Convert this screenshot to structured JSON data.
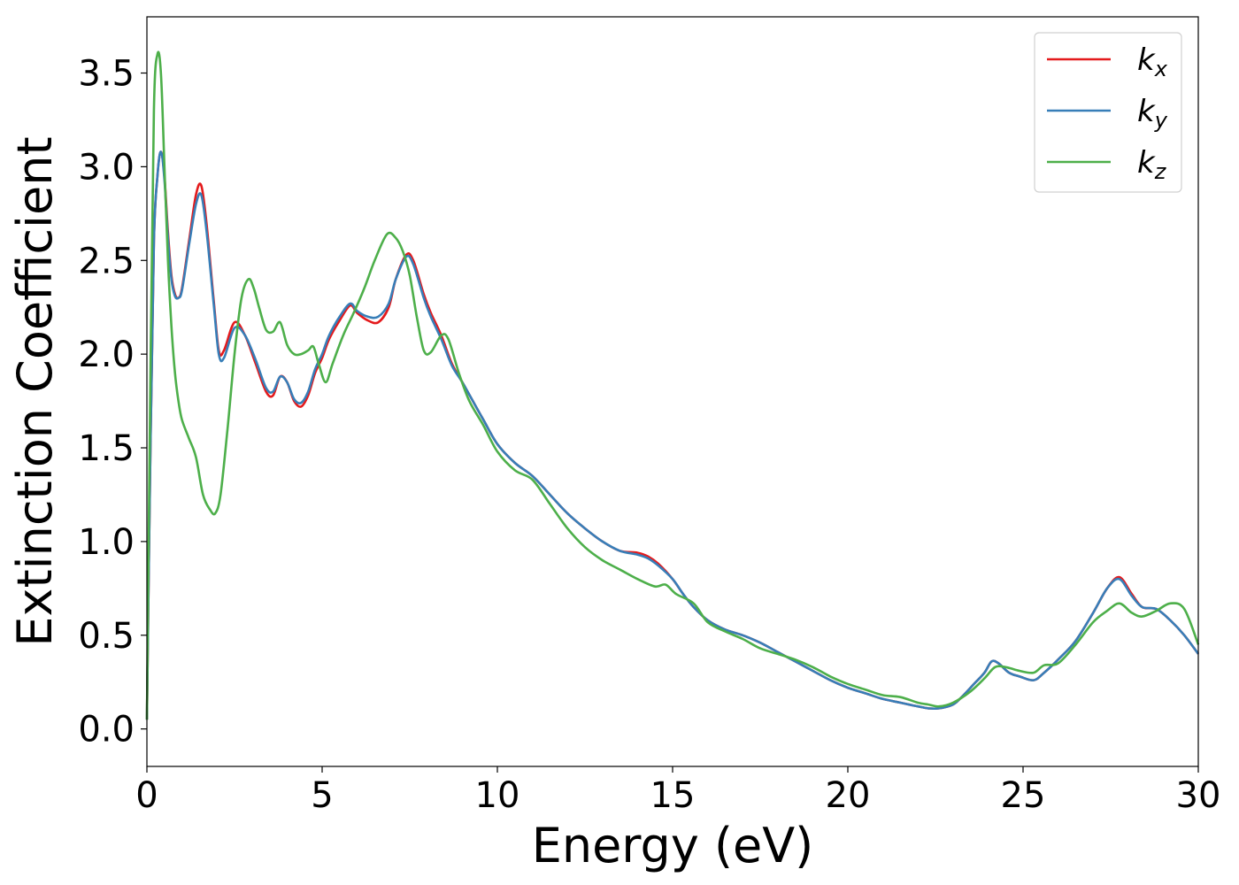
{
  "chart_data": {
    "type": "line",
    "xlabel": "Energy (eV)",
    "ylabel": "Extinction Coefficient",
    "xlim": [
      0,
      30
    ],
    "ylim": [
      -0.2,
      3.8
    ],
    "xticks": [
      0,
      5,
      10,
      15,
      20,
      25,
      30
    ],
    "xtick_labels": [
      "0",
      "5",
      "10",
      "15",
      "20",
      "25",
      "30"
    ],
    "yticks": [
      0.0,
      0.5,
      1.0,
      1.5,
      2.0,
      2.5,
      3.0,
      3.5
    ],
    "ytick_labels": [
      "0.0",
      "0.5",
      "1.0",
      "1.5",
      "2.0",
      "2.5",
      "3.0",
      "3.5"
    ],
    "grid": false,
    "legend_position": "top-right",
    "series": [
      {
        "name": "k_x",
        "base": "k",
        "sub": "x",
        "color": "#e41a1c",
        "x": [
          0,
          0.1,
          0.2,
          0.3,
          0.4,
          0.5,
          0.6,
          0.7,
          0.8,
          0.9,
          1.0,
          1.2,
          1.4,
          1.55,
          1.7,
          1.9,
          2.05,
          2.2,
          2.5,
          2.8,
          3.1,
          3.4,
          3.6,
          3.8,
          4.0,
          4.2,
          4.4,
          4.6,
          4.8,
          5.0,
          5.2,
          5.5,
          5.8,
          6.0,
          6.3,
          6.6,
          6.9,
          7.1,
          7.4,
          7.6,
          7.9,
          8.1,
          8.4,
          8.7,
          9.0,
          9.3,
          9.6,
          10.0,
          10.5,
          11.0,
          11.5,
          12.0,
          12.5,
          13.0,
          13.5,
          14.0,
          14.3,
          14.6,
          15.0,
          15.3,
          15.6,
          16.0,
          16.5,
          17.0,
          17.5,
          18.0,
          18.5,
          19.0,
          19.5,
          20.0,
          20.5,
          21.0,
          21.5,
          22.0,
          22.3,
          22.6,
          23.0,
          23.3,
          23.6,
          23.9,
          24.1,
          24.3,
          24.6,
          24.9,
          25.3,
          25.6,
          26.0,
          26.5,
          27.0,
          27.4,
          27.75,
          28.1,
          28.4,
          28.8,
          29.2,
          29.6,
          30.0
        ],
        "y": [
          0.05,
          1.5,
          2.6,
          2.95,
          3.08,
          2.95,
          2.65,
          2.42,
          2.32,
          2.3,
          2.35,
          2.6,
          2.85,
          2.9,
          2.7,
          2.3,
          2.02,
          2.02,
          2.17,
          2.1,
          1.95,
          1.8,
          1.78,
          1.88,
          1.85,
          1.75,
          1.72,
          1.78,
          1.9,
          1.98,
          2.08,
          2.18,
          2.26,
          2.22,
          2.18,
          2.17,
          2.25,
          2.4,
          2.53,
          2.5,
          2.32,
          2.22,
          2.1,
          1.95,
          1.85,
          1.75,
          1.65,
          1.52,
          1.42,
          1.35,
          1.25,
          1.15,
          1.07,
          1.0,
          0.95,
          0.94,
          0.92,
          0.88,
          0.8,
          0.72,
          0.65,
          0.58,
          0.53,
          0.5,
          0.46,
          0.41,
          0.36,
          0.31,
          0.26,
          0.22,
          0.19,
          0.16,
          0.14,
          0.12,
          0.11,
          0.11,
          0.13,
          0.18,
          0.24,
          0.3,
          0.36,
          0.35,
          0.3,
          0.28,
          0.26,
          0.3,
          0.37,
          0.47,
          0.62,
          0.75,
          0.81,
          0.72,
          0.65,
          0.64,
          0.58,
          0.5,
          0.4
        ]
      },
      {
        "name": "k_y",
        "base": "k",
        "sub": "y",
        "color": "#377eb8",
        "x": [
          0,
          0.1,
          0.2,
          0.3,
          0.4,
          0.5,
          0.6,
          0.7,
          0.8,
          0.9,
          1.0,
          1.2,
          1.4,
          1.55,
          1.7,
          1.9,
          2.05,
          2.2,
          2.5,
          2.8,
          3.1,
          3.4,
          3.6,
          3.8,
          4.0,
          4.2,
          4.4,
          4.6,
          4.8,
          5.0,
          5.2,
          5.5,
          5.8,
          6.0,
          6.3,
          6.6,
          6.9,
          7.1,
          7.4,
          7.6,
          7.9,
          8.1,
          8.4,
          8.7,
          9.0,
          9.3,
          9.6,
          10.0,
          10.5,
          11.0,
          11.5,
          12.0,
          12.5,
          13.0,
          13.5,
          14.0,
          14.3,
          14.6,
          15.0,
          15.3,
          15.6,
          16.0,
          16.5,
          17.0,
          17.5,
          18.0,
          18.5,
          19.0,
          19.5,
          20.0,
          20.5,
          21.0,
          21.5,
          22.0,
          22.3,
          22.6,
          23.0,
          23.3,
          23.6,
          23.9,
          24.1,
          24.3,
          24.6,
          24.9,
          25.3,
          25.6,
          26.0,
          26.5,
          27.0,
          27.4,
          27.75,
          28.1,
          28.4,
          28.8,
          29.2,
          29.6,
          30.0
        ],
        "y": [
          0.05,
          1.5,
          2.6,
          2.95,
          3.08,
          2.93,
          2.62,
          2.4,
          2.31,
          2.3,
          2.34,
          2.58,
          2.8,
          2.85,
          2.66,
          2.28,
          2.0,
          1.98,
          2.14,
          2.1,
          1.97,
          1.82,
          1.8,
          1.88,
          1.85,
          1.76,
          1.74,
          1.8,
          1.92,
          2.0,
          2.1,
          2.2,
          2.27,
          2.23,
          2.2,
          2.2,
          2.27,
          2.4,
          2.52,
          2.48,
          2.3,
          2.2,
          2.08,
          1.94,
          1.85,
          1.75,
          1.65,
          1.52,
          1.42,
          1.35,
          1.25,
          1.15,
          1.07,
          1.0,
          0.95,
          0.93,
          0.91,
          0.87,
          0.8,
          0.72,
          0.65,
          0.58,
          0.53,
          0.5,
          0.46,
          0.41,
          0.36,
          0.31,
          0.26,
          0.22,
          0.19,
          0.16,
          0.14,
          0.12,
          0.11,
          0.11,
          0.13,
          0.18,
          0.24,
          0.3,
          0.36,
          0.35,
          0.3,
          0.28,
          0.26,
          0.3,
          0.37,
          0.47,
          0.62,
          0.75,
          0.8,
          0.71,
          0.65,
          0.64,
          0.58,
          0.5,
          0.4
        ]
      },
      {
        "name": "k_z",
        "base": "k",
        "sub": "z",
        "color": "#4daf4a",
        "x": [
          0,
          0.1,
          0.2,
          0.3,
          0.4,
          0.5,
          0.6,
          0.7,
          0.8,
          0.9,
          1.0,
          1.2,
          1.4,
          1.6,
          1.8,
          1.95,
          2.1,
          2.3,
          2.5,
          2.7,
          2.9,
          3.05,
          3.2,
          3.4,
          3.6,
          3.8,
          4.0,
          4.2,
          4.4,
          4.6,
          4.75,
          4.9,
          5.1,
          5.3,
          5.6,
          5.9,
          6.2,
          6.5,
          6.85,
          7.1,
          7.3,
          7.5,
          7.7,
          7.9,
          8.1,
          8.4,
          8.6,
          8.9,
          9.2,
          9.6,
          10.0,
          10.5,
          11.0,
          11.5,
          12.0,
          12.5,
          13.0,
          13.5,
          14.0,
          14.5,
          14.8,
          15.1,
          15.6,
          16.0,
          16.5,
          17.0,
          17.5,
          18.0,
          18.5,
          19.0,
          19.5,
          20.0,
          20.5,
          21.0,
          21.5,
          22.0,
          22.3,
          22.6,
          23.0,
          23.5,
          23.9,
          24.2,
          24.5,
          24.9,
          25.3,
          25.6,
          26.0,
          26.5,
          27.0,
          27.4,
          27.75,
          28.1,
          28.4,
          28.8,
          29.2,
          29.6,
          30.0
        ],
        "y": [
          0.05,
          1.9,
          3.3,
          3.6,
          3.5,
          3.0,
          2.5,
          2.15,
          1.9,
          1.75,
          1.65,
          1.55,
          1.45,
          1.25,
          1.17,
          1.15,
          1.25,
          1.6,
          2.0,
          2.3,
          2.4,
          2.35,
          2.25,
          2.13,
          2.12,
          2.17,
          2.05,
          2.0,
          2.0,
          2.02,
          2.04,
          1.95,
          1.85,
          1.95,
          2.1,
          2.22,
          2.35,
          2.5,
          2.64,
          2.62,
          2.55,
          2.42,
          2.2,
          2.02,
          2.01,
          2.1,
          2.08,
          1.9,
          1.75,
          1.62,
          1.48,
          1.38,
          1.33,
          1.2,
          1.07,
          0.97,
          0.9,
          0.85,
          0.8,
          0.76,
          0.77,
          0.72,
          0.67,
          0.57,
          0.52,
          0.48,
          0.43,
          0.4,
          0.37,
          0.33,
          0.28,
          0.24,
          0.21,
          0.18,
          0.17,
          0.14,
          0.13,
          0.12,
          0.14,
          0.2,
          0.27,
          0.33,
          0.33,
          0.31,
          0.3,
          0.34,
          0.35,
          0.45,
          0.57,
          0.63,
          0.67,
          0.62,
          0.6,
          0.63,
          0.67,
          0.64,
          0.45
        ]
      }
    ]
  }
}
